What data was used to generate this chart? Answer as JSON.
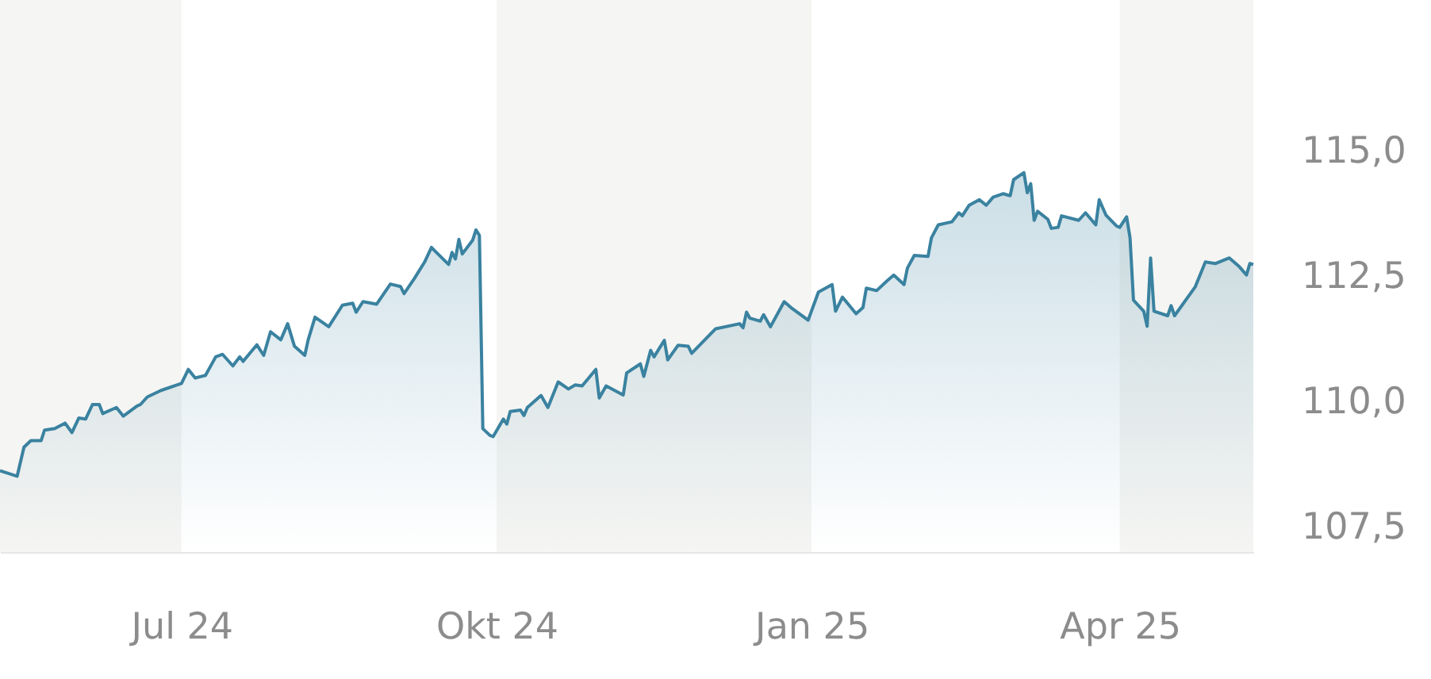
{
  "chart_data": {
    "type": "area",
    "x": [
      "2024-05-09",
      "2024-05-14",
      "2024-05-16",
      "2024-05-18",
      "2024-05-21",
      "2024-05-22",
      "2024-05-25",
      "2024-05-28",
      "2024-05-30",
      "2024-06-01",
      "2024-06-03",
      "2024-06-05",
      "2024-06-07",
      "2024-06-08",
      "2024-06-12",
      "2024-06-14",
      "2024-06-18",
      "2024-06-19",
      "2024-06-21",
      "2024-06-25",
      "2024-07-01",
      "2024-07-03",
      "2024-07-05",
      "2024-07-08",
      "2024-07-11",
      "2024-07-13",
      "2024-07-16",
      "2024-07-18",
      "2024-07-19",
      "2024-07-23",
      "2024-07-25",
      "2024-07-27",
      "2024-07-30",
      "2024-08-01",
      "2024-08-03",
      "2024-08-06",
      "2024-08-07",
      "2024-08-09",
      "2024-08-13",
      "2024-08-17",
      "2024-08-20",
      "2024-08-21",
      "2024-08-23",
      "2024-08-27",
      "2024-08-31",
      "2024-09-03",
      "2024-09-04",
      "2024-09-07",
      "2024-09-10",
      "2024-09-12",
      "2024-09-13",
      "2024-09-17",
      "2024-09-18",
      "2024-09-19",
      "2024-09-20",
      "2024-09-21",
      "2024-09-24",
      "2024-09-25",
      "2024-09-26",
      "2024-09-27",
      "2024-09-29",
      "2024-09-30",
      "2024-10-03",
      "2024-10-04",
      "2024-10-05",
      "2024-10-08",
      "2024-10-09",
      "2024-10-10",
      "2024-10-14",
      "2024-10-16",
      "2024-10-19",
      "2024-10-22",
      "2024-10-24",
      "2024-10-26",
      "2024-10-30",
      "2024-10-31",
      "2024-11-02",
      "2024-11-07",
      "2024-11-08",
      "2024-11-12",
      "2024-11-13",
      "2024-11-15",
      "2024-11-16",
      "2024-11-19",
      "2024-11-20",
      "2024-11-23",
      "2024-11-26",
      "2024-11-27",
      "2024-12-04",
      "2024-12-11",
      "2024-12-12",
      "2024-12-13",
      "2024-12-14",
      "2024-12-17",
      "2024-12-18",
      "2024-12-20",
      "2024-12-24",
      "2024-12-26",
      "2024-12-31",
      "2025-01-03",
      "2025-01-07",
      "2025-01-08",
      "2025-01-10",
      "2025-01-14",
      "2025-01-16",
      "2025-01-17",
      "2025-01-20",
      "2025-01-23",
      "2025-01-25",
      "2025-01-28",
      "2025-01-29",
      "2025-01-31",
      "2025-02-04",
      "2025-02-05",
      "2025-02-07",
      "2025-02-11",
      "2025-02-13",
      "2025-02-14",
      "2025-02-16",
      "2025-02-19",
      "2025-02-21",
      "2025-02-23",
      "2025-02-26",
      "2025-02-28",
      "2025-03-01",
      "2025-03-04",
      "2025-03-05",
      "2025-03-06",
      "2025-03-07",
      "2025-03-08",
      "2025-03-11",
      "2025-03-12",
      "2025-03-14",
      "2025-03-15",
      "2025-03-20",
      "2025-03-22",
      "2025-03-25",
      "2025-03-26",
      "2025-03-28",
      "2025-03-31",
      "2025-04-01",
      "2025-04-03",
      "2025-04-04",
      "2025-04-05",
      "2025-04-08",
      "2025-04-09",
      "2025-04-10",
      "2025-04-11",
      "2025-04-15",
      "2025-04-16",
      "2025-04-17",
      "2025-04-23",
      "2025-04-26",
      "2025-04-29",
      "2025-05-03",
      "2025-05-06",
      "2025-05-08",
      "2025-05-09",
      "2025-05-10"
    ],
    "series": [
      {
        "color": "#3a82a0",
        "values": [
          108.62,
          108.51,
          109.09,
          109.22,
          109.22,
          109.43,
          109.46,
          109.57,
          109.38,
          109.67,
          109.65,
          109.94,
          109.94,
          109.76,
          109.88,
          109.71,
          109.91,
          109.94,
          110.09,
          110.22,
          110.36,
          110.64,
          110.47,
          110.52,
          110.89,
          110.94,
          110.71,
          110.89,
          110.8,
          111.13,
          110.92,
          111.39,
          111.23,
          111.55,
          111.1,
          110.92,
          111.23,
          111.68,
          111.49,
          111.92,
          111.96,
          111.78,
          111.99,
          111.94,
          112.34,
          112.29,
          112.15,
          112.45,
          112.78,
          113.07,
          113.0,
          112.73,
          112.97,
          112.84,
          113.23,
          112.94,
          113.21,
          113.42,
          113.31,
          109.46,
          109.33,
          109.3,
          109.65,
          109.55,
          109.8,
          109.83,
          109.72,
          109.88,
          110.12,
          109.88,
          110.39,
          110.25,
          110.33,
          110.31,
          110.64,
          110.07,
          110.31,
          110.13,
          110.57,
          110.75,
          110.5,
          111.02,
          110.89,
          111.22,
          110.83,
          111.12,
          111.1,
          110.96,
          111.45,
          111.55,
          111.47,
          111.78,
          111.66,
          111.6,
          111.73,
          111.49,
          111.99,
          111.87,
          111.62,
          112.18,
          112.33,
          111.8,
          112.08,
          111.75,
          111.87,
          112.26,
          112.21,
          112.4,
          112.52,
          112.33,
          112.66,
          112.91,
          112.89,
          113.26,
          113.52,
          113.58,
          113.76,
          113.7,
          113.91,
          114.02,
          113.91,
          114.07,
          114.14,
          114.1,
          114.42,
          114.56,
          114.16,
          114.34,
          113.61,
          113.79,
          113.63,
          113.45,
          113.47,
          113.7,
          113.61,
          113.76,
          113.52,
          114.02,
          113.71,
          113.5,
          113.47,
          113.68,
          113.26,
          112.02,
          111.8,
          111.5,
          112.86,
          111.8,
          111.71,
          111.91,
          111.71,
          112.28,
          112.78,
          112.75,
          112.86,
          112.68,
          112.52,
          112.75,
          112.73
        ]
      }
    ],
    "xlim": [
      "2024-05-09",
      "2025-05-10"
    ],
    "xticks": [
      {
        "value": "2024-07-01",
        "label": "Jul 24"
      },
      {
        "value": "2024-10-01",
        "label": "Okt 24"
      },
      {
        "value": "2025-01-01",
        "label": "Jan 25"
      },
      {
        "value": "2025-04-01",
        "label": "Apr 25"
      }
    ],
    "ylim": [
      107.0,
      118.0
    ],
    "yticks": [
      {
        "value": 107.5,
        "label": "107,5"
      },
      {
        "value": 110.0,
        "label": "110,0"
      },
      {
        "value": 112.5,
        "label": "112,5"
      },
      {
        "value": 115.0,
        "label": "115,0"
      }
    ],
    "bands": [
      {
        "axis": "x",
        "from": "2024-05-09",
        "to": "2024-07-01",
        "color": "#f5f5f3"
      },
      {
        "axis": "x",
        "from": "2024-10-01",
        "to": "2025-01-01",
        "color": "#f5f5f3"
      },
      {
        "axis": "x",
        "from": "2025-04-01",
        "to": "2025-05-10",
        "color": "#f5f5f3"
      }
    ],
    "grid": false
  }
}
